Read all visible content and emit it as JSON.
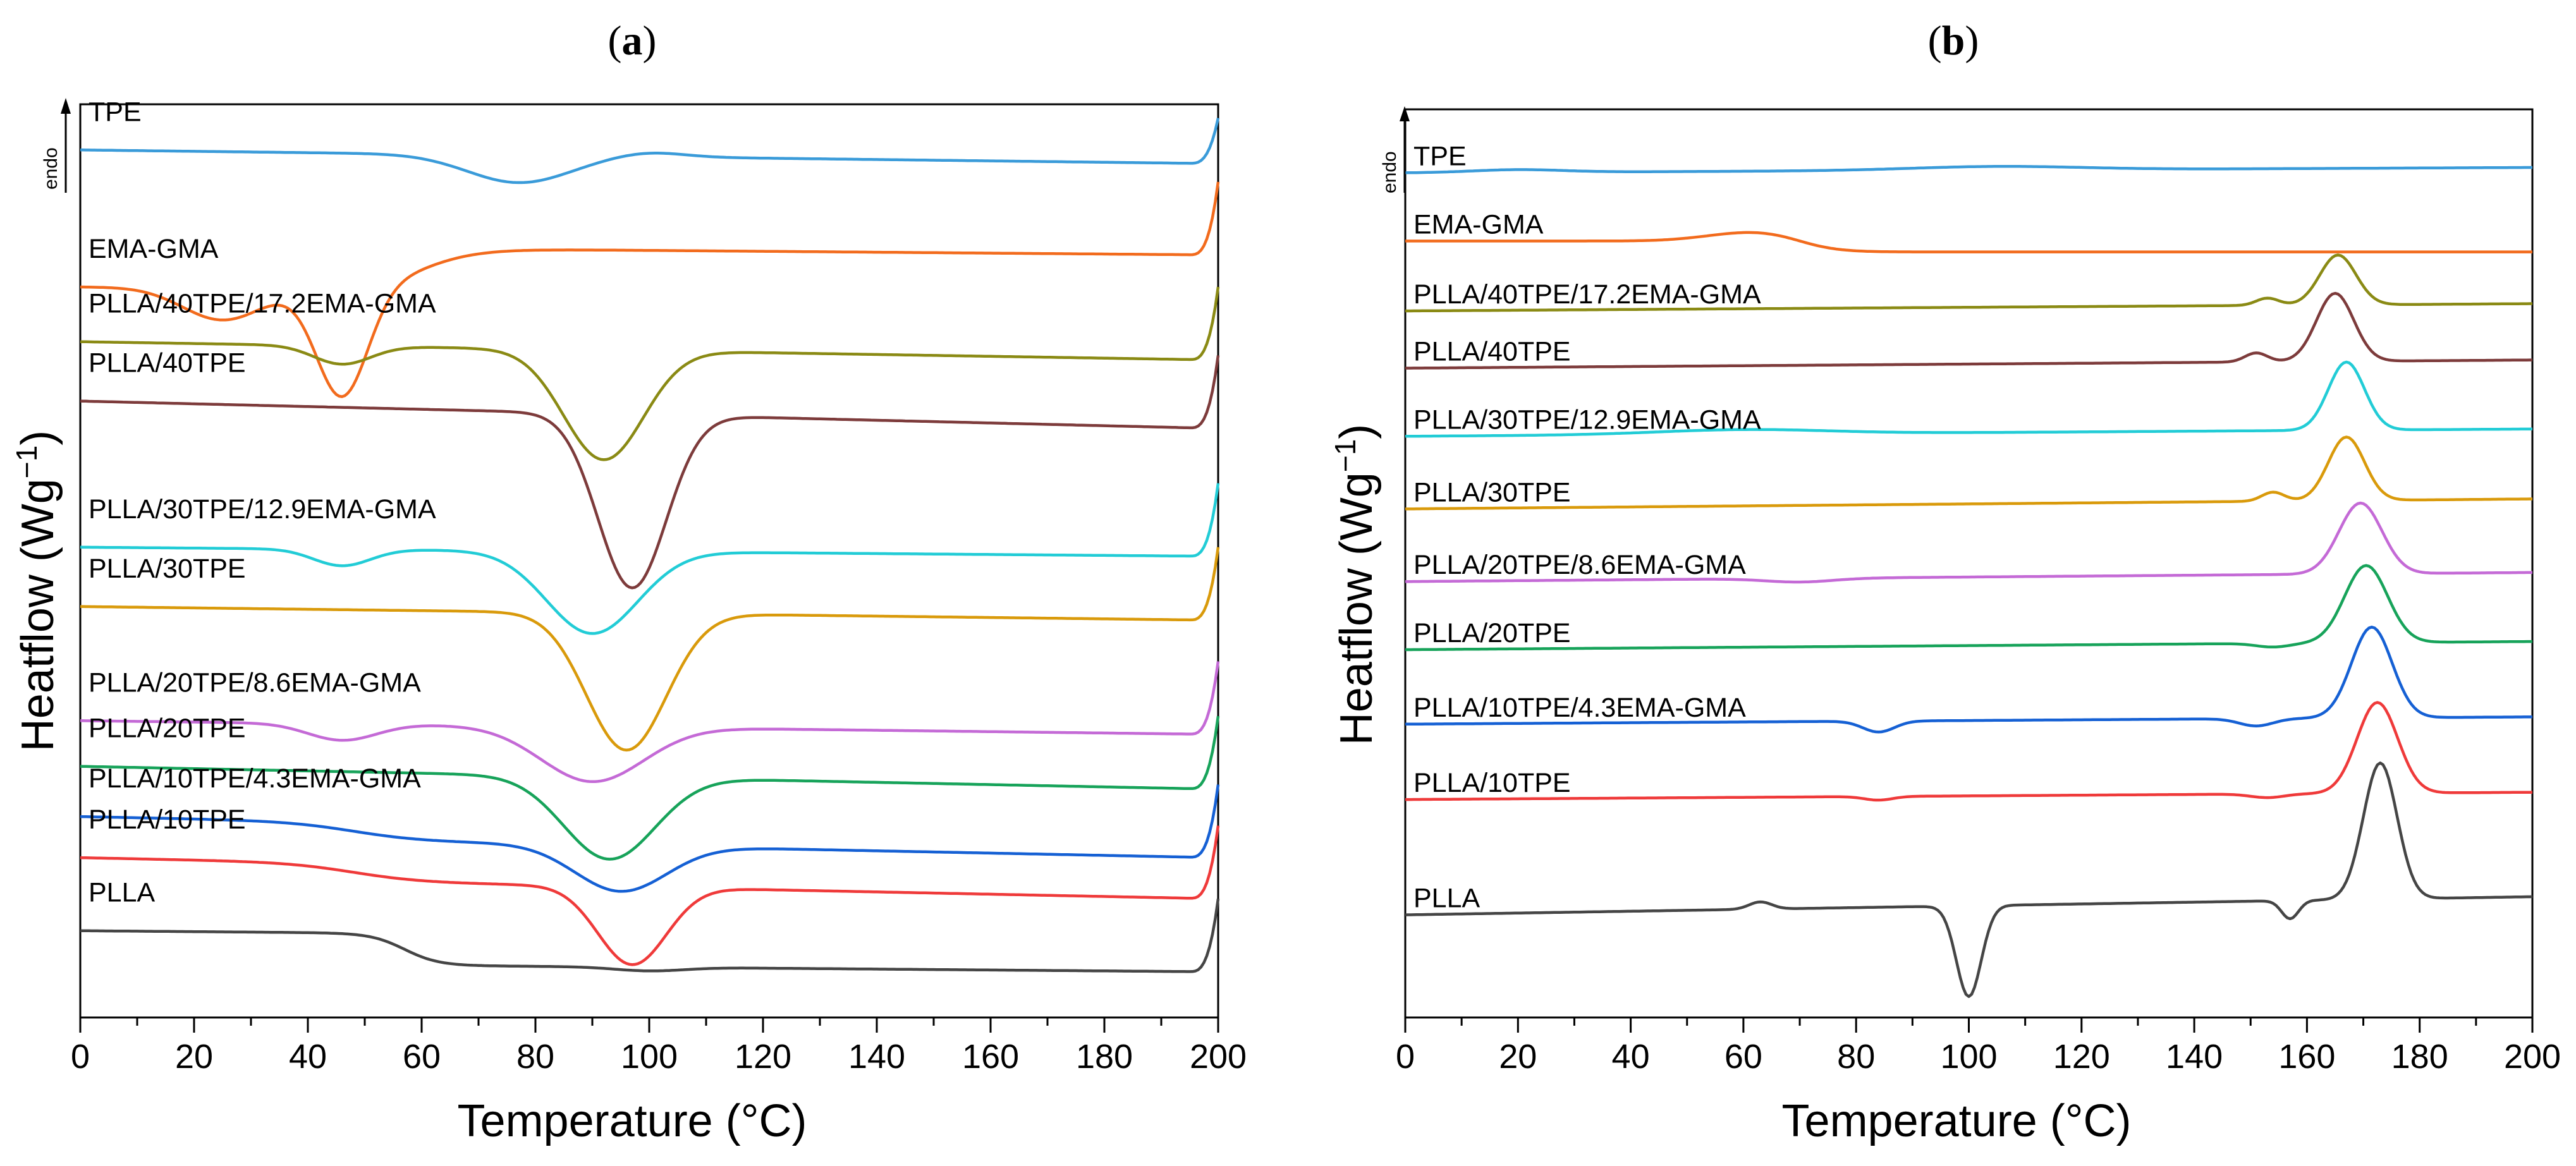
{
  "chart_data": [
    {
      "panel": "(a)",
      "panel_parts": {
        "open": "(",
        "letter": "a",
        "close": ")"
      },
      "type": "line",
      "xlabel": "Temperature (°C)",
      "ylabel_parts": {
        "main": "Heatflow (Wg",
        "sup": "−1",
        "close": ")"
      },
      "endo_label": "endo",
      "xlim": [
        0,
        200
      ],
      "xticks": [
        "0",
        "20",
        "40",
        "60",
        "80",
        "100",
        "120",
        "140",
        "160",
        "180",
        "200"
      ],
      "y_ticks_labeled": false,
      "series": [
        {
          "name": "TPE",
          "color": "#3a9bd9",
          "baseline": 0.05,
          "drift": 0.015,
          "features": [
            {
              "c": 77,
              "w": 9,
              "a": 0.03
            },
            {
              "c": 100,
              "w": 6,
              "a": -0.005
            }
          ],
          "edge_rise": 0.05
        },
        {
          "name": "EMA-GMA",
          "color": "#f26b1d",
          "baseline": 0.2,
          "drift": 0.01,
          "features": [
            {
              "c": 25,
              "w": 7,
              "a": 0.035
            },
            {
              "c": 46,
              "w": 4.5,
              "a": 0.12
            }
          ],
          "step": {
            "c": 60,
            "w": 5,
            "a": -0.045
          },
          "edge_rise": 0.08
        },
        {
          "name": "PLLA/40TPE/17.2EMA-GMA",
          "color": "#8a8a14",
          "baseline": 0.26,
          "drift": 0.02,
          "features": [
            {
              "c": 46,
              "w": 5,
              "a": 0.02
            },
            {
              "c": 92,
              "w": 7,
              "a": 0.12
            }
          ],
          "edge_rise": 0.08
        },
        {
          "name": "PLLA/40TPE",
          "color": "#7d3b3b",
          "baseline": 0.325,
          "drift": 0.03,
          "features": [
            {
              "c": 97,
              "w": 6,
              "a": 0.19
            }
          ],
          "edge_rise": 0.08
        },
        {
          "name": "PLLA/30TPE/12.9EMA-GMA",
          "color": "#22ccd6",
          "baseline": 0.485,
          "drift": 0.01,
          "features": [
            {
              "c": 46,
              "w": 5,
              "a": 0.018
            },
            {
              "c": 90,
              "w": 8,
              "a": 0.09
            }
          ],
          "edge_rise": 0.08
        },
        {
          "name": "PLLA/30TPE",
          "color": "#d99a0b",
          "baseline": 0.55,
          "drift": 0.015,
          "features": [
            {
              "c": 96,
              "w": 7,
              "a": 0.15
            }
          ],
          "edge_rise": 0.08
        },
        {
          "name": "PLLA/20TPE/8.6EMA-GMA",
          "color": "#c46ad6",
          "baseline": 0.675,
          "drift": 0.015,
          "features": [
            {
              "c": 46,
              "w": 6,
              "a": 0.018
            },
            {
              "c": 90,
              "w": 9,
              "a": 0.06
            }
          ],
          "edge_rise": 0.08
        },
        {
          "name": "PLLA/20TPE",
          "color": "#17a35a",
          "baseline": 0.725,
          "drift": 0.025,
          "features": [
            {
              "c": 93,
              "w": 8,
              "a": 0.09
            }
          ],
          "edge_rise": 0.08
        },
        {
          "name": "PLLA/10TPE/4.3EMA-GMA",
          "color": "#1560d4",
          "baseline": 0.78,
          "drift": 0.025,
          "features": [
            {
              "c": 95,
              "w": 8,
              "a": 0.05
            }
          ],
          "step": {
            "c": 48,
            "w": 6,
            "a": 0.02
          },
          "edge_rise": 0.08
        },
        {
          "name": "PLLA/10TPE",
          "color": "#ef3a3a",
          "baseline": 0.825,
          "drift": 0.025,
          "features": [
            {
              "c": 97,
              "w": 6,
              "a": 0.085
            }
          ],
          "step": {
            "c": 48,
            "w": 6,
            "a": 0.02
          },
          "edge_rise": 0.08
        },
        {
          "name": "PLLA",
          "color": "#454545",
          "baseline": 0.905,
          "drift": 0.01,
          "features": [
            {
              "c": 100,
              "w": 6,
              "a": 0.004
            }
          ],
          "step": {
            "c": 57,
            "w": 3,
            "a": 0.035
          },
          "edge_rise": 0.08
        }
      ]
    },
    {
      "panel": "(b)",
      "panel_parts": {
        "open": "(",
        "letter": "b",
        "close": ")"
      },
      "type": "line",
      "xlabel": "Temperature (°C)",
      "ylabel_parts": {
        "main": "Heatflow (Wg",
        "sup": "−1",
        "close": ")"
      },
      "endo_label": "endo",
      "xlim": [
        0,
        200
      ],
      "xticks": [
        "0",
        "20",
        "40",
        "60",
        "80",
        "100",
        "120",
        "140",
        "160",
        "180",
        "200"
      ],
      "y_ticks_labeled": false,
      "series": [
        {
          "name": "TPE",
          "color": "#3a9bd9",
          "baseline": 0.07,
          "drift": -0.006,
          "features": [
            {
              "c": 20,
              "w": 8,
              "a": -0.003
            },
            {
              "c": 105,
              "w": 15,
              "a": -0.004
            }
          ]
        },
        {
          "name": "EMA-GMA",
          "color": "#f26b1d",
          "baseline": 0.145,
          "drift": 0.0,
          "features": [
            {
              "c": 62,
              "w": 8,
              "a": -0.01
            }
          ],
          "step": {
            "c": 70,
            "w": 3,
            "a": 0.012
          }
        },
        {
          "name": "PLLA/40TPE/17.2EMA-GMA",
          "color": "#8a8a14",
          "baseline": 0.222,
          "drift": -0.008,
          "features": [
            {
              "c": 153,
              "w": 2,
              "a": -0.008
            },
            {
              "c": 165.5,
              "w": 3.2,
              "a": -0.055
            }
          ]
        },
        {
          "name": "PLLA/40TPE",
          "color": "#7d3b3b",
          "baseline": 0.285,
          "drift": -0.009,
          "features": [
            {
              "c": 151,
              "w": 2,
              "a": -0.01
            },
            {
              "c": 165,
              "w": 3.3,
              "a": -0.075
            }
          ]
        },
        {
          "name": "PLLA/30TPE/12.9EMA-GMA",
          "color": "#22ccd6",
          "baseline": 0.36,
          "drift": -0.008,
          "features": [
            {
              "c": 60,
              "w": 15,
              "a": -0.005
            },
            {
              "c": 167,
              "w": 3.2,
              "a": -0.075
            }
          ]
        },
        {
          "name": "PLLA/30TPE",
          "color": "#d99a0b",
          "baseline": 0.44,
          "drift": -0.011,
          "features": [
            {
              "c": 154,
              "w": 2,
              "a": -0.01
            },
            {
              "c": 167,
              "w": 3.2,
              "a": -0.07
            }
          ]
        },
        {
          "name": "PLLA/20TPE/8.6EMA-GMA",
          "color": "#c46ad6",
          "baseline": 0.52,
          "drift": -0.01,
          "features": [
            {
              "c": 70,
              "w": 6,
              "a": 0.004
            },
            {
              "c": 169.5,
              "w": 3.8,
              "a": -0.078
            }
          ]
        },
        {
          "name": "PLLA/20TPE",
          "color": "#17a35a",
          "baseline": 0.595,
          "drift": -0.009,
          "features": [
            {
              "c": 154,
              "w": 3,
              "a": 0.004
            },
            {
              "c": 170.5,
              "w": 3.8,
              "a": -0.085
            }
          ]
        },
        {
          "name": "PLLA/10TPE/4.3EMA-GMA",
          "color": "#1560d4",
          "baseline": 0.677,
          "drift": -0.008,
          "features": [
            {
              "c": 84,
              "w": 2.8,
              "a": 0.012
            },
            {
              "c": 151,
              "w": 3,
              "a": 0.008
            },
            {
              "c": 171.5,
              "w": 3.6,
              "a": -0.1
            }
          ]
        },
        {
          "name": "PLLA/10TPE",
          "color": "#ef3a3a",
          "baseline": 0.76,
          "drift": -0.008,
          "features": [
            {
              "c": 84,
              "w": 2.5,
              "a": 0.004
            },
            {
              "c": 153,
              "w": 3,
              "a": 0.004
            },
            {
              "c": 172.5,
              "w": 3.6,
              "a": -0.1
            }
          ]
        },
        {
          "name": "PLLA",
          "color": "#454545",
          "baseline": 0.887,
          "drift": -0.02,
          "features": [
            {
              "c": 63,
              "w": 2,
              "a": -0.008
            },
            {
              "c": 100,
              "w": 2.2,
              "a": 0.1
            },
            {
              "c": 157,
              "w": 1.5,
              "a": 0.02
            },
            {
              "c": 173,
              "w": 3,
              "a": -0.15
            }
          ]
        }
      ]
    }
  ]
}
